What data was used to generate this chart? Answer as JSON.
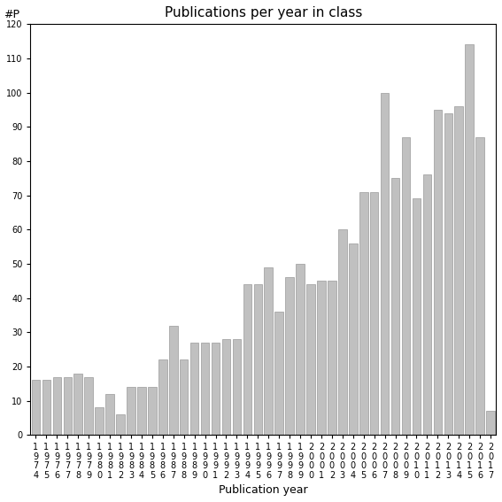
{
  "years": [
    "1974",
    "1975",
    "1976",
    "1977",
    "1978",
    "1979",
    "1980",
    "1981",
    "1982",
    "1983",
    "1984",
    "1985",
    "1986",
    "1987",
    "1988",
    "1989",
    "1990",
    "1991",
    "1992",
    "1993",
    "1994",
    "1995",
    "1996",
    "1997",
    "1998",
    "1999",
    "2000",
    "2001",
    "2002",
    "2003",
    "2004",
    "2005",
    "2006",
    "2007",
    "2008",
    "2009",
    "2010",
    "2011",
    "2012",
    "2013",
    "2014",
    "2015",
    "2016",
    "2017"
  ],
  "values": [
    16,
    16,
    17,
    17,
    18,
    17,
    8,
    12,
    6,
    14,
    14,
    14,
    22,
    32,
    22,
    27,
    27,
    27,
    28,
    28,
    44,
    44,
    49,
    36,
    46,
    50,
    44,
    45,
    45,
    60,
    56,
    71,
    71,
    100,
    75,
    87,
    69,
    76,
    95,
    94,
    96,
    114,
    87,
    7
  ],
  "bar_color": "#c0c0c0",
  "bar_edgecolor": "#999999",
  "title": "Publications per year in class",
  "xlabel": "Publication year",
  "ylabel": "#P",
  "ylim": [
    0,
    120
  ],
  "yticks": [
    0,
    10,
    20,
    30,
    40,
    50,
    60,
    70,
    80,
    90,
    100,
    110,
    120
  ],
  "title_fontsize": 11,
  "axis_label_fontsize": 9,
  "tick_fontsize": 7
}
